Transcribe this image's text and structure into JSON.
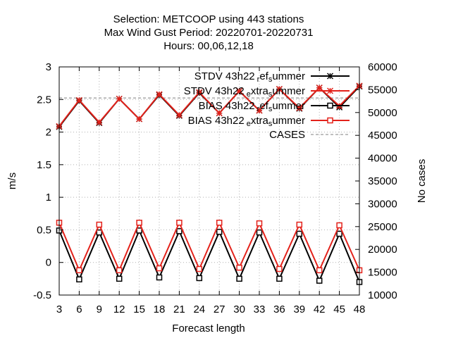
{
  "chart_data": {
    "type": "line",
    "title_lines": [
      "Selection: METCOOP using   443 stations",
      "Max Wind Gust   Period: 20220701-20220731",
      "Hours: 00,06,12,18"
    ],
    "xlabel": "Forecast length",
    "ylabel": "m/s",
    "y2label": "No cases",
    "x": [
      3,
      6,
      9,
      12,
      15,
      18,
      21,
      24,
      27,
      30,
      33,
      36,
      39,
      42,
      45,
      48
    ],
    "xlim": [
      3,
      48
    ],
    "ylim": [
      -0.5,
      3
    ],
    "y2lim": [
      10000,
      60000
    ],
    "grid": true,
    "legend_position": "top-right",
    "colors": {
      "black": "#000000",
      "red": "#e3221b",
      "cases": "#999999"
    },
    "x_ticks": [
      "3",
      "6",
      "9",
      "12",
      "15",
      "18",
      "21",
      "24",
      "27",
      "30",
      "33",
      "36",
      "39",
      "42",
      "45",
      "48"
    ],
    "y_ticks": [
      "-0.5",
      "0",
      "0.5",
      "1",
      "1.5",
      "2",
      "2.5",
      "3"
    ],
    "y2_ticks": [
      "10000",
      "15000",
      "20000",
      "25000",
      "30000",
      "35000",
      "40000",
      "45000",
      "50000",
      "55000",
      "60000"
    ],
    "series": [
      {
        "name": "STDV 43h22_ref_summer",
        "label_main": "STDV 43h22",
        "label_sub1": "r",
        "label_mid": "ef",
        "label_sub2": "s",
        "label_end": "ummer",
        "axis": "y1",
        "color": "#000000",
        "marker": "star",
        "values": [
          2.08,
          2.48,
          2.14,
          2.51,
          2.2,
          2.57,
          2.25,
          2.6,
          2.29,
          2.63,
          2.33,
          2.66,
          2.36,
          2.68,
          2.38,
          2.7
        ]
      },
      {
        "name": "STDV 43h22_extra_summer",
        "label_main": "STDV 43h22",
        "label_sub1": "e",
        "label_mid": "xtra",
        "label_sub2": "s",
        "label_end": "ummer",
        "axis": "y1",
        "color": "#e3221b",
        "marker": "star",
        "values": [
          2.09,
          2.49,
          2.15,
          2.51,
          2.2,
          2.58,
          2.26,
          2.61,
          2.29,
          2.63,
          2.33,
          2.66,
          2.37,
          2.68,
          2.4,
          2.71
        ]
      },
      {
        "name": "BIAS 43h22_ref_summer",
        "label_main": "BIAS 43h22",
        "label_sub1": "r",
        "label_mid": "ef",
        "label_sub2": "s",
        "label_end": "ummer",
        "axis": "y1",
        "color": "#000000",
        "marker": "square",
        "values": [
          0.49,
          -0.26,
          0.46,
          -0.25,
          0.49,
          -0.23,
          0.48,
          -0.24,
          0.47,
          -0.25,
          0.46,
          -0.25,
          0.44,
          -0.28,
          0.44,
          -0.3
        ]
      },
      {
        "name": "BIAS 43h22_extra_summer",
        "label_main": "BIAS 43h22",
        "label_sub1": "e",
        "label_mid": "xtra",
        "label_sub2": "s",
        "label_end": "ummer",
        "axis": "y1",
        "color": "#e3221b",
        "marker": "square",
        "values": [
          0.61,
          -0.12,
          0.58,
          -0.12,
          0.61,
          -0.09,
          0.61,
          -0.1,
          0.61,
          -0.08,
          0.6,
          -0.1,
          0.58,
          -0.12,
          0.57,
          -0.12
        ]
      },
      {
        "name": "CASES",
        "label_main": "CASES",
        "axis": "y2",
        "color": "#999999",
        "marker": "none",
        "dashed": true,
        "values": [
          53200,
          53200,
          53200,
          53200,
          53200,
          53200,
          53200,
          53200,
          53200,
          53200,
          53200,
          53200,
          53200,
          53200,
          53200,
          53200
        ]
      }
    ]
  }
}
